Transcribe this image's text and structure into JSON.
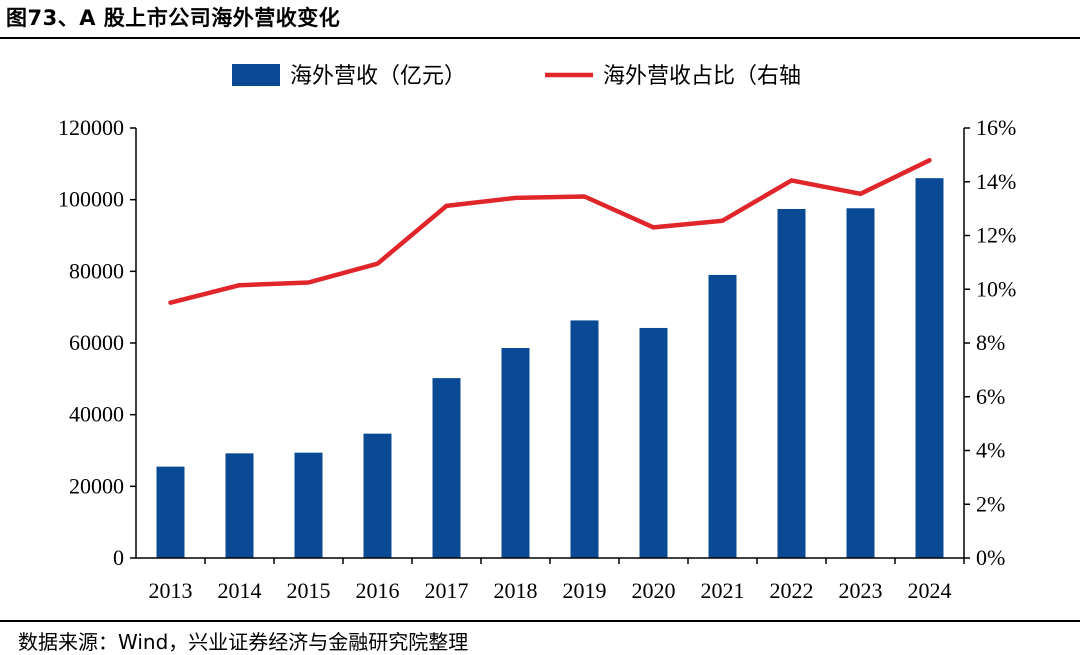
{
  "figure_title": "图73、A 股上市公司海外营收变化",
  "source_note": "数据来源：Wind，兴业证券经济与金融研究院整理",
  "colors": {
    "bar": "#0a4a94",
    "line": "#e0252b",
    "axis": "#000000"
  },
  "chart_data": {
    "type": "bar+line",
    "categories": [
      "2013",
      "2014",
      "2015",
      "2016",
      "2017",
      "2018",
      "2019",
      "2020",
      "2021",
      "2022",
      "2023",
      "2024"
    ],
    "series": [
      {
        "name": "海外营收（亿元）",
        "type": "bar",
        "axis": "left",
        "values": [
          25500,
          29200,
          29400,
          34700,
          50200,
          58600,
          66300,
          64200,
          79000,
          97400,
          97600,
          106000
        ]
      },
      {
        "name": "海外营收占比（右轴",
        "type": "line",
        "axis": "right",
        "values": [
          9.5,
          10.15,
          10.25,
          10.95,
          13.1,
          13.4,
          13.45,
          12.3,
          12.55,
          14.05,
          13.55,
          14.8
        ]
      }
    ],
    "y_left": {
      "min": 0,
      "max": 120000,
      "ticks": [
        "0",
        "20000",
        "40000",
        "60000",
        "80000",
        "100000",
        "120000"
      ]
    },
    "y_right": {
      "min": 0,
      "max": 16,
      "ticks": [
        "0%",
        "2%",
        "4%",
        "6%",
        "8%",
        "10%",
        "12%",
        "14%",
        "16%"
      ]
    },
    "legend_position": "top-center"
  }
}
